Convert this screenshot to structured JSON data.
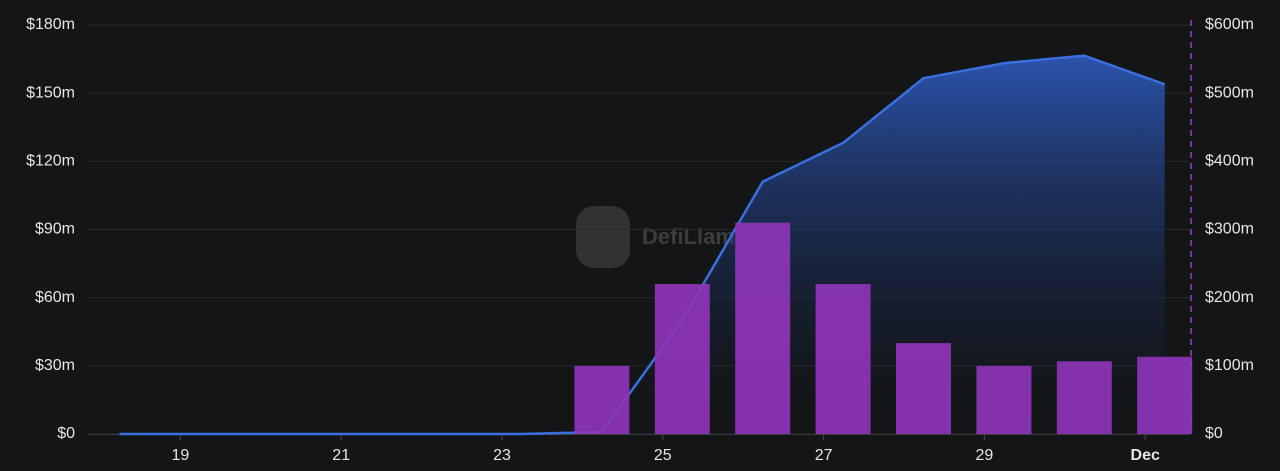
{
  "chart_data": {
    "type": "bar-line",
    "watermark": "DefiLlama",
    "categories": [
      null,
      "19",
      null,
      "21",
      null,
      "23",
      null,
      "25",
      null,
      "27",
      null,
      "29",
      null,
      "Dec"
    ],
    "series": [
      {
        "type": "bar",
        "color": "#8e35b8",
        "values": [
          null,
          null,
          null,
          null,
          null,
          null,
          30,
          66,
          93,
          66,
          40,
          30,
          32,
          34
        ]
      },
      {
        "type": "line",
        "axis": "y2",
        "color": "#3a6fe0",
        "values": [
          0,
          0,
          0,
          0,
          0,
          0,
          3,
          167,
          370,
          427,
          522,
          544,
          555,
          513
        ]
      }
    ],
    "ylim": [
      0,
      180
    ],
    "yticks": [
      {
        "value": 0,
        "label": "$0"
      },
      {
        "value": 30,
        "label": "$30m"
      },
      {
        "value": 60,
        "label": "$60m"
      },
      {
        "value": 90,
        "label": "$90m"
      },
      {
        "value": 120,
        "label": "$120m"
      },
      {
        "value": 150,
        "label": "$150m"
      },
      {
        "value": 180,
        "label": "$180m"
      }
    ],
    "y2lim": [
      0,
      600
    ],
    "y2ticks": [
      {
        "value": 0,
        "label": "$0"
      },
      {
        "value": 100,
        "label": "$100m"
      },
      {
        "value": 200,
        "label": "$200m"
      },
      {
        "value": 300,
        "label": "$300m"
      },
      {
        "value": 400,
        "label": "$400m"
      },
      {
        "value": 500,
        "label": "$500m"
      },
      {
        "value": 600,
        "label": "$600m"
      }
    ],
    "grid": true
  }
}
